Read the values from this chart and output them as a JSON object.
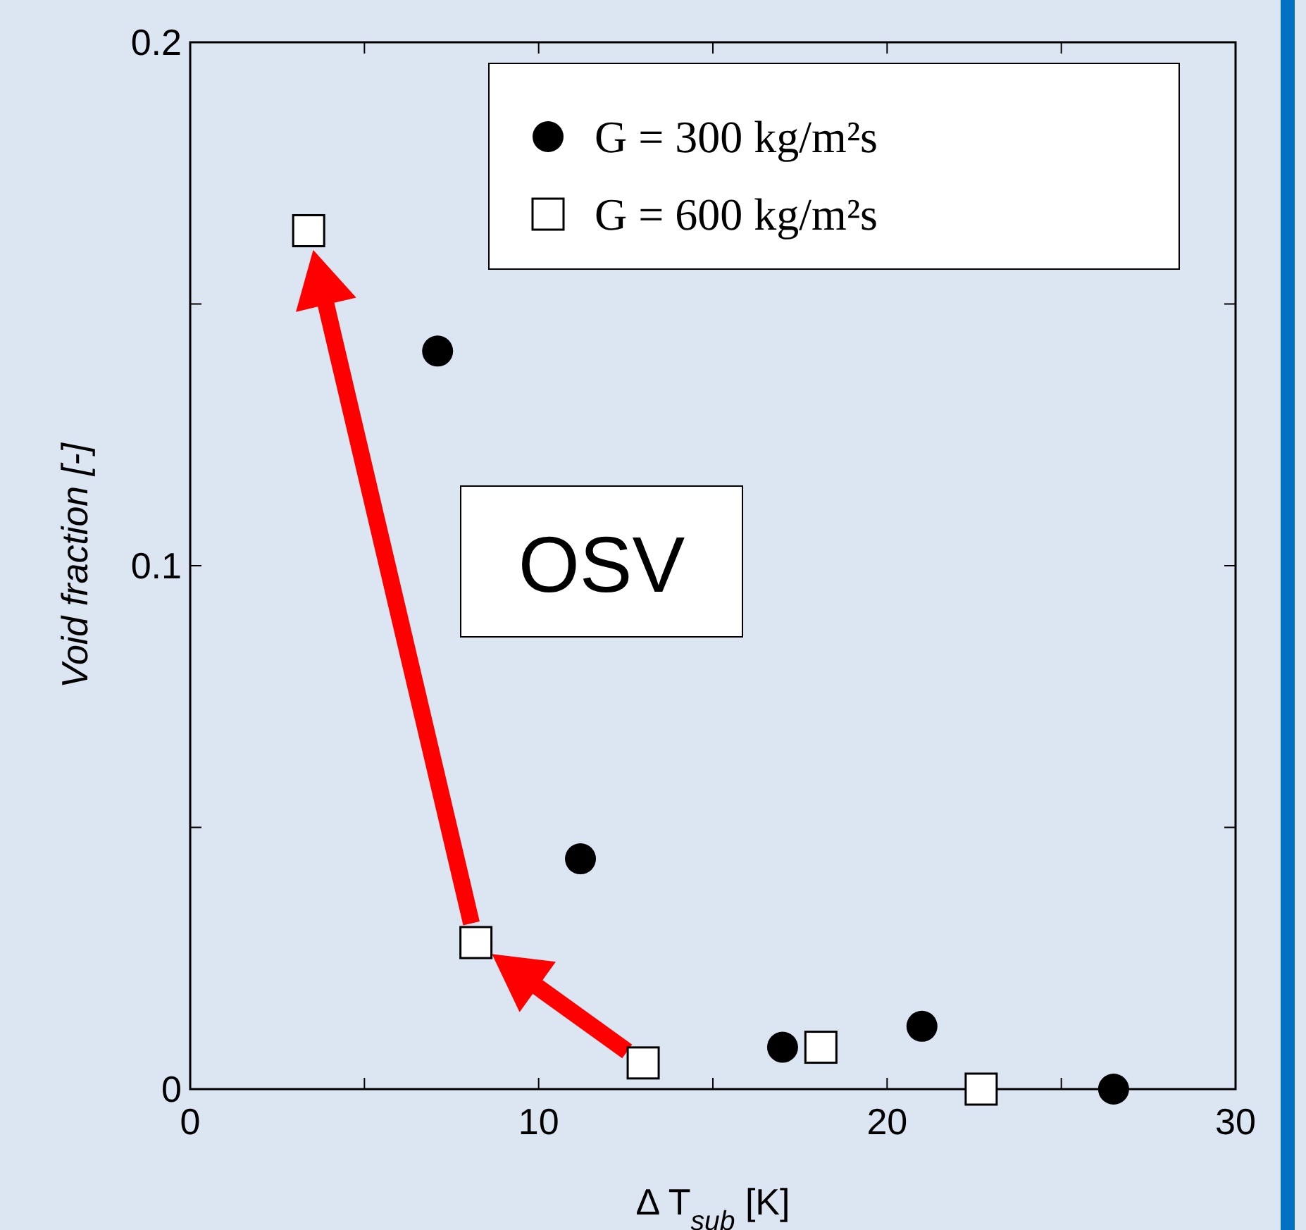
{
  "chart_data": {
    "type": "scatter",
    "xlabel": "Δ T$_{sub}$ [K]",
    "ylabel": "Void fraction [-]",
    "xlim": [
      0,
      30
    ],
    "xticks": [
      0,
      {
        "value": 5,
        "label": null
      },
      10,
      {
        "value": 15,
        "label": null
      },
      20,
      {
        "value": 25,
        "label": null
      },
      30
    ],
    "ylim": [
      0,
      0.2
    ],
    "yticks": [
      0,
      {
        "value": 0.05,
        "label": null
      },
      0.1,
      {
        "value": 0.15,
        "label": null
      },
      0.2
    ],
    "legend": "top right",
    "grid": false,
    "annotations": [
      "OSV"
    ],
    "series": [
      {
        "name": "G = 300 kg/m²s",
        "color": "#000000",
        "marker": "circle",
        "x": [
          7.1,
          11.2,
          17.0,
          21.0,
          26.5
        ],
        "values": [
          0.141,
          0.044,
          0.008,
          0.012,
          0.0
        ]
      },
      {
        "name": "G = 600 kg/m²s",
        "color": "#000000",
        "marker": "square",
        "x": [
          3.4,
          8.2,
          13.0,
          18.1,
          22.7
        ],
        "values": [
          0.164,
          0.028,
          0.005,
          0.008,
          0.0
        ]
      }
    ]
  }
}
